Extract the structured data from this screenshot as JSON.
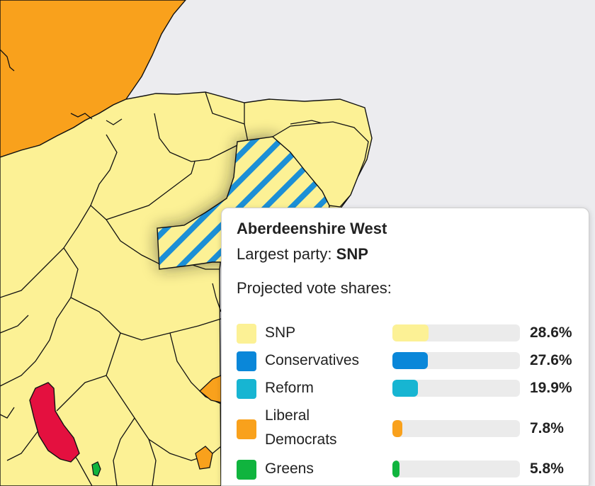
{
  "tooltip": {
    "constituency": "Aberdeenshire West",
    "largest_party_label": "Largest party:",
    "largest_party": "SNP",
    "projected_label": "Projected vote shares:"
  },
  "parties": [
    {
      "name": "SNP",
      "share": 28.6,
      "share_label": "28.6%",
      "color": "#fcf195"
    },
    {
      "name": "Conservatives",
      "share": 27.6,
      "share_label": "27.6%",
      "color": "#0a87d9"
    },
    {
      "name": "Reform",
      "share": 19.9,
      "share_label": "19.9%",
      "color": "#17b5d2"
    },
    {
      "name_line1": "Liberal",
      "name_line2": "Democrats",
      "share": 7.8,
      "share_label": "7.8%",
      "color": "#f9a11c"
    },
    {
      "name": "Greens",
      "share": 5.8,
      "share_label": "5.8%",
      "color": "#10b43e"
    }
  ],
  "map_colors": {
    "background": "#ececef",
    "snp": "#fcf195",
    "lib_dem": "#f9a11c",
    "labour": "#e4103f",
    "green": "#10b43e",
    "conservative": "#0a87d9",
    "highlight_stripe": "#1c8fd6"
  },
  "highlighted_constituency": "Aberdeenshire West"
}
